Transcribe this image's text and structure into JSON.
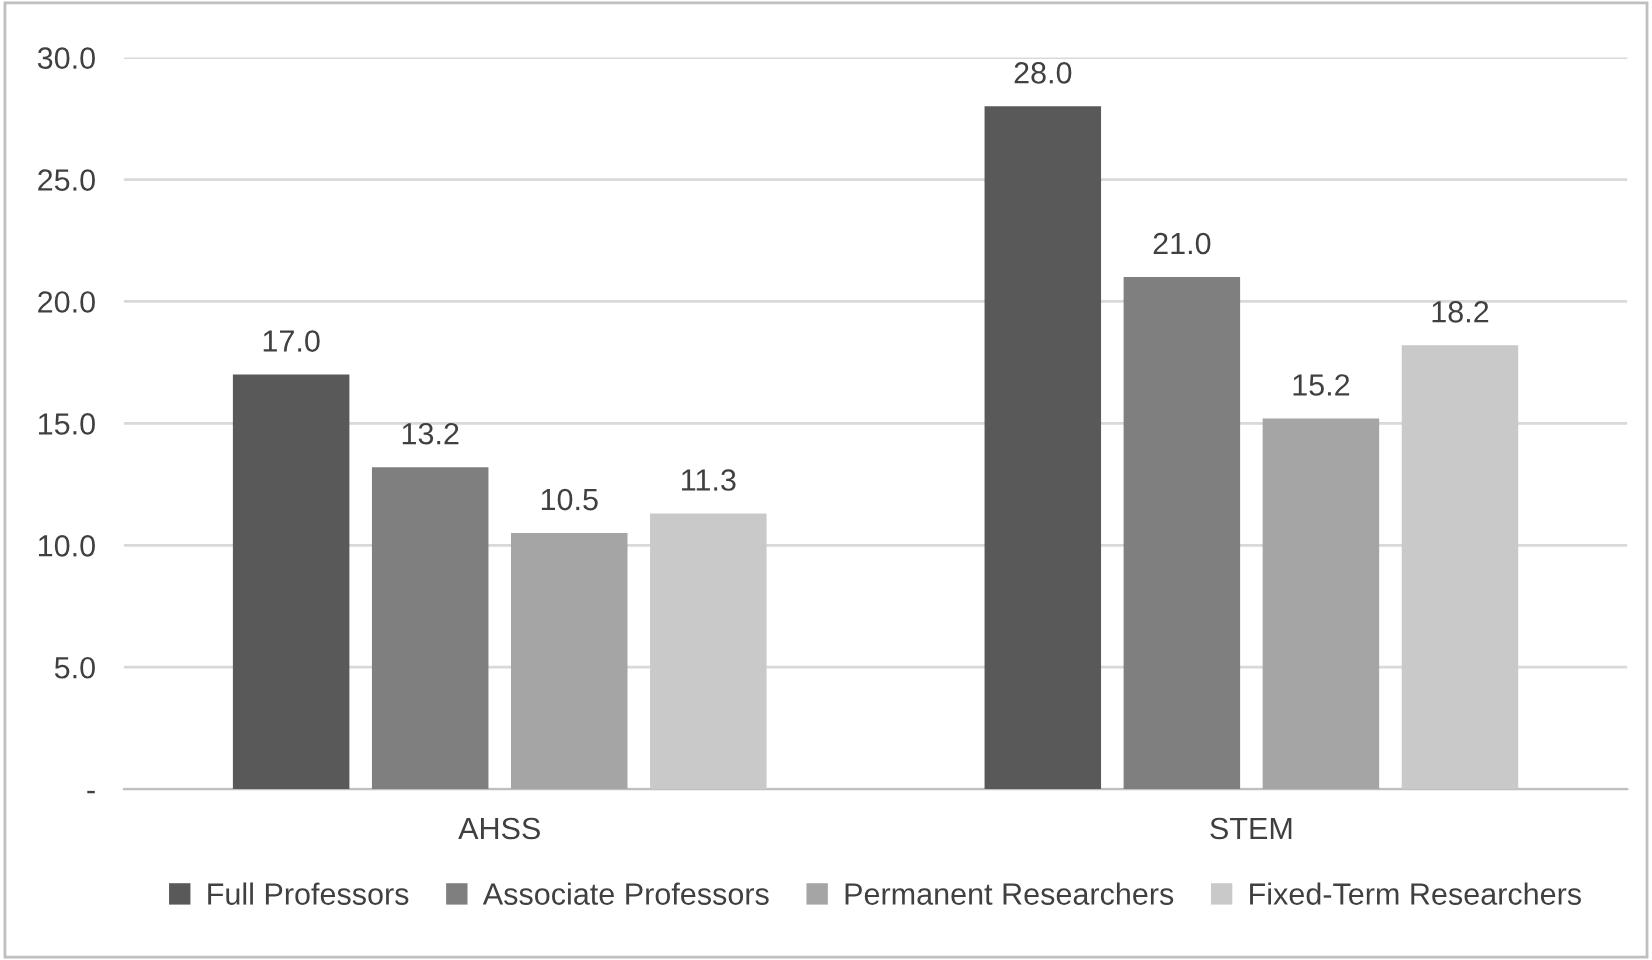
{
  "chart_data": {
    "type": "bar",
    "categories": [
      "AHSS",
      "STEM"
    ],
    "series": [
      {
        "name": "Full Professors",
        "color": "#595959",
        "values": [
          17.0,
          28.0
        ],
        "value_labels": [
          "17.0",
          "28.0"
        ]
      },
      {
        "name": "Associate Professors",
        "color": "#7f7f7f",
        "values": [
          13.2,
          21.0
        ],
        "value_labels": [
          "13.2",
          "21.0"
        ]
      },
      {
        "name": "Permanent Researchers",
        "color": "#a5a5a5",
        "values": [
          10.5,
          15.2
        ],
        "value_labels": [
          "10.5",
          "15.2"
        ]
      },
      {
        "name": "Fixed-Term Researchers",
        "color": "#c9c9c9",
        "values": [
          11.3,
          18.2
        ],
        "value_labels": [
          "11.3",
          "18.2"
        ]
      }
    ],
    "ylim": [
      0,
      30
    ],
    "yticks": [
      {
        "value": 0,
        "label": "-"
      },
      {
        "value": 5,
        "label": "5.0"
      },
      {
        "value": 10,
        "label": "10.0"
      },
      {
        "value": 15,
        "label": "15.0"
      },
      {
        "value": 20,
        "label": "20.0"
      },
      {
        "value": 25,
        "label": "25.0"
      },
      {
        "value": 30,
        "label": "30.0"
      }
    ],
    "grid": "y",
    "legend": "bottom"
  }
}
